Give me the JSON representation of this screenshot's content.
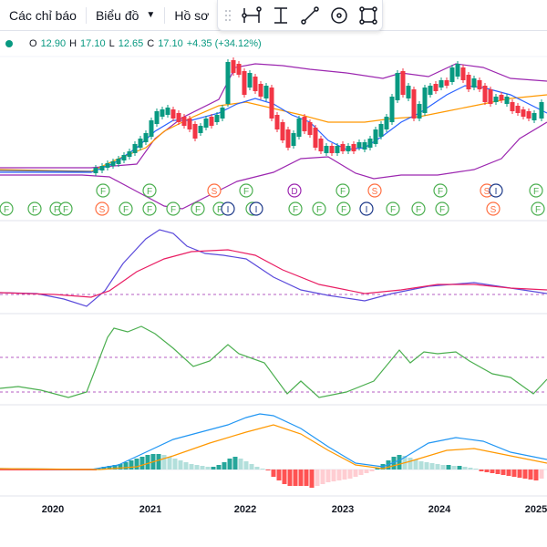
{
  "toolbar": {
    "indicators_label": "Các chỉ báo",
    "chart_label": "Biểu đồ",
    "profile_label": "Hồ sơ"
  },
  "legend": {
    "open_label": "O",
    "open": "12.90",
    "high_label": "H",
    "high": "17.10",
    "low_label": "L",
    "low": "12.65",
    "close_label": "C",
    "close": "17.10",
    "change": "+4.35 (+34.12%)"
  },
  "colors": {
    "up": "#089981",
    "down": "#f23645",
    "ma_fast": "#2962ff",
    "ma_slow": "#ff9800",
    "bands": "#9c27b0",
    "events_green": "#4caf50",
    "events_orange": "#ff7043",
    "events_purple": "#9c27b0",
    "events_blue": "#1e3a8a"
  },
  "icons": [
    "drag-grip-icon",
    "horizontal-range-icon",
    "vertical-range-icon",
    "trend-line-icon",
    "circle-target-icon",
    "rectangle-icon"
  ],
  "markers": {
    "row1": [
      "F",
      "F",
      "S",
      "F",
      "D",
      "F",
      "S",
      "F",
      "S",
      "I",
      "F"
    ],
    "row2": [
      "F",
      "F",
      "F",
      "F",
      "S",
      "F",
      "F",
      "F",
      "F",
      "F",
      "I",
      "F",
      "I",
      "F",
      "F",
      "F",
      "I",
      "F",
      "F",
      "F",
      "S",
      "F"
    ]
  },
  "chart_data": {
    "type": "candlestick",
    "x_ticks": [
      "2020",
      "2021",
      "2022",
      "2023",
      "2024",
      "2025"
    ],
    "last_close": 17.1,
    "last_open": 12.9,
    "last_high": 17.1,
    "last_low": 12.65,
    "panes": [
      "price",
      "oscillator",
      "rsi",
      "macd"
    ]
  }
}
